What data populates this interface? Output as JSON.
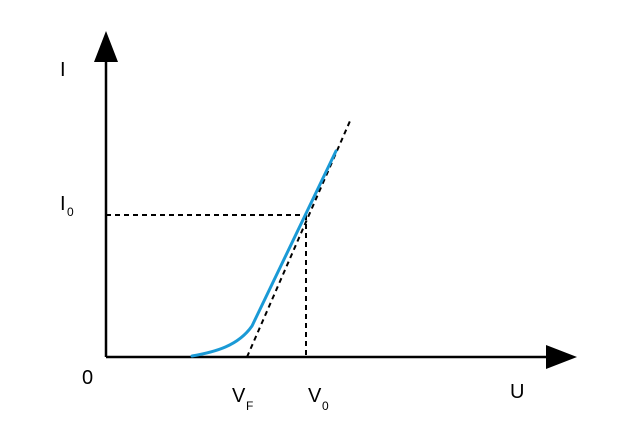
{
  "diagram": {
    "y_axis_label": "I",
    "x_axis_label": "U",
    "origin_label": "0",
    "i0_label": {
      "main": "I",
      "sub": "0"
    },
    "vf_label": {
      "main": "V",
      "sub": "F"
    },
    "v0_label": {
      "main": "V",
      "sub": "0"
    }
  },
  "colors": {
    "curve": "#1a9ad6",
    "axes": "#000000",
    "dashed": "#000000"
  }
}
